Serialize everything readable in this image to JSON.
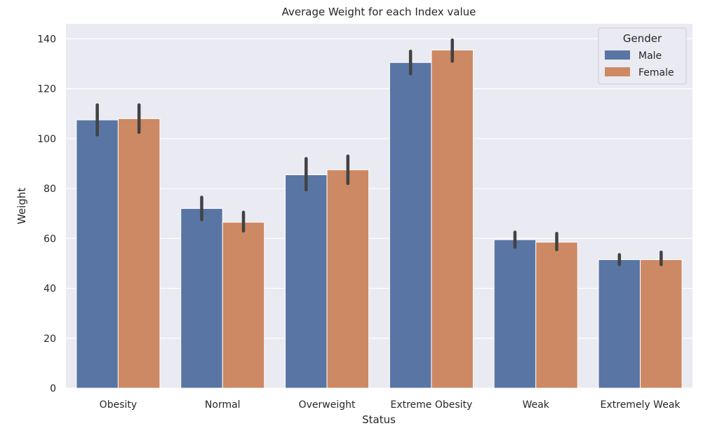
{
  "chart_data": {
    "type": "bar",
    "title": "Average Weight for each Index value",
    "xlabel": "Status",
    "ylabel": "Weight",
    "categories": [
      "Obesity",
      "Normal",
      "Overweight",
      "Extreme Obesity",
      "Weak",
      "Extremely Weak"
    ],
    "series": [
      {
        "name": "Male",
        "color": "#5975a4",
        "values": [
          107.5,
          72.0,
          85.5,
          130.5,
          59.5,
          51.5
        ],
        "err_low": [
          101.5,
          67.5,
          79.5,
          126.0,
          56.5,
          49.5
        ],
        "err_high": [
          113.5,
          76.5,
          92.0,
          135.0,
          62.5,
          53.5
        ]
      },
      {
        "name": "Female",
        "color": "#cc8963",
        "values": [
          108.0,
          66.5,
          87.5,
          135.5,
          58.5,
          51.5
        ],
        "err_low": [
          102.5,
          63.0,
          82.0,
          131.0,
          55.5,
          49.5
        ],
        "err_high": [
          113.5,
          70.5,
          93.0,
          139.5,
          62.0,
          54.5
        ]
      }
    ],
    "ylim": [
      0,
      146
    ],
    "yticks": [
      0,
      20,
      40,
      60,
      80,
      100,
      120,
      140
    ],
    "grid": true,
    "legend": {
      "title": "Gender",
      "placement": "top-right"
    },
    "background": "#eaeaf2",
    "error_bar_color": "#424242"
  }
}
